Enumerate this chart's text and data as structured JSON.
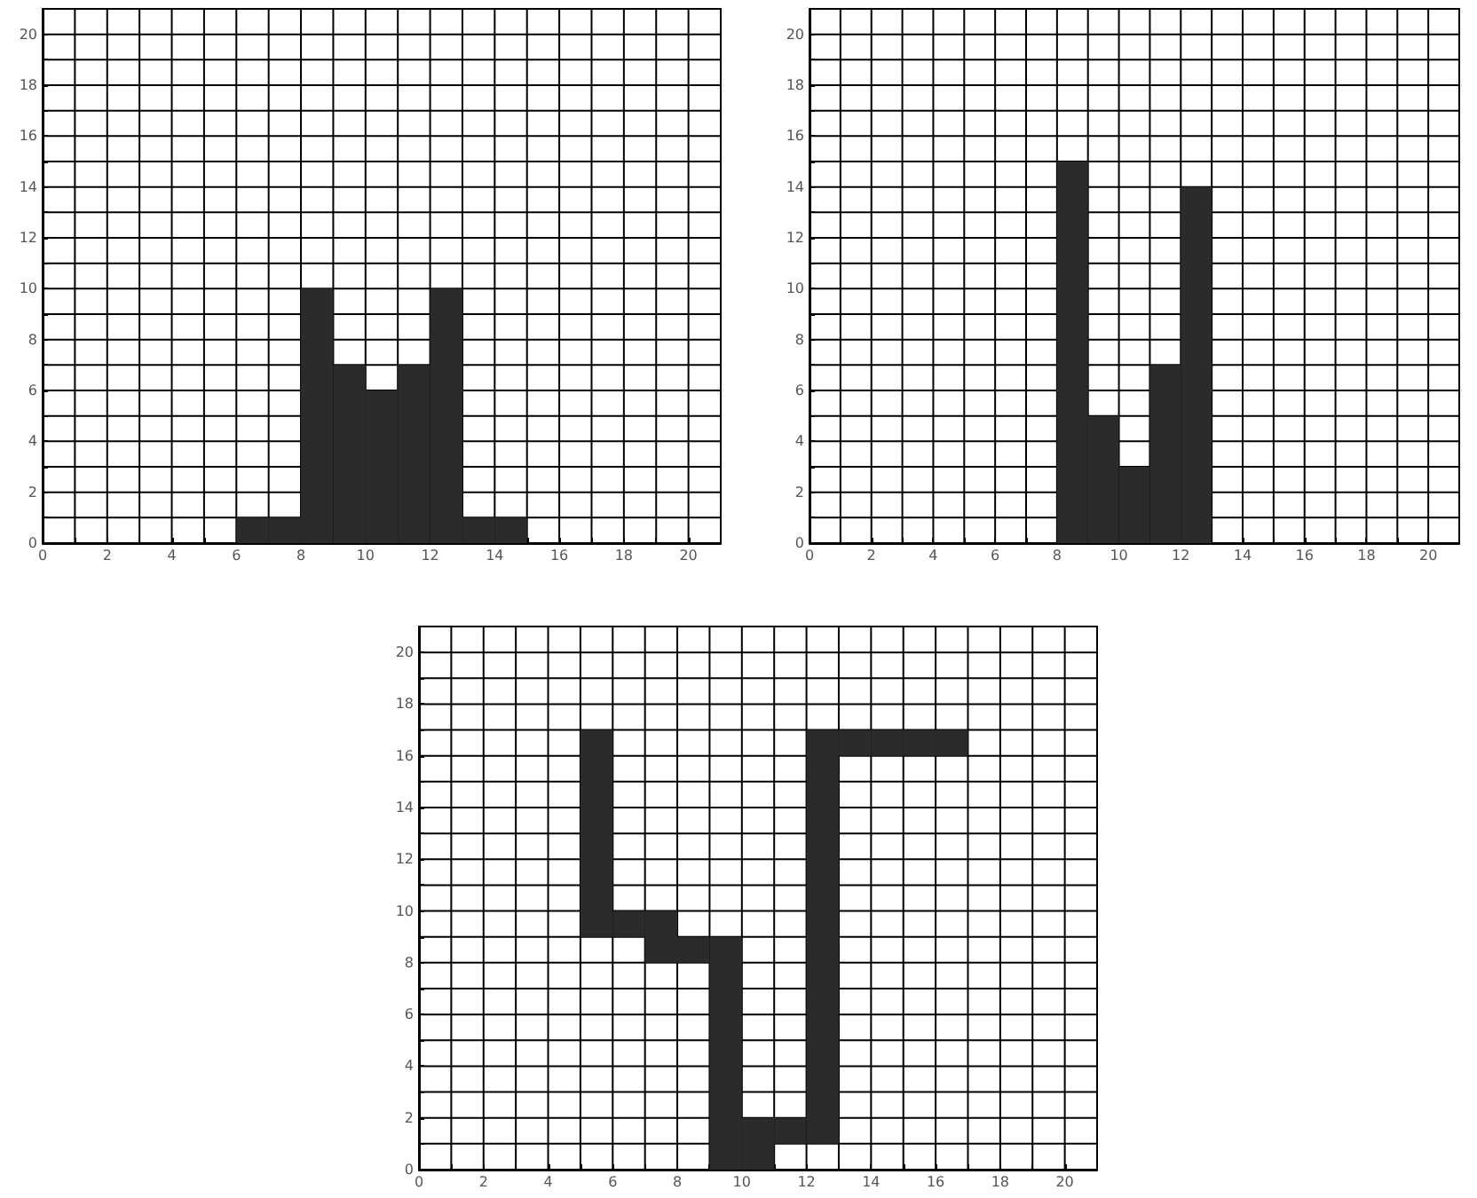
{
  "chart_data": [
    {
      "type": "histogram",
      "bins": [
        6,
        7,
        8,
        9,
        10,
        11,
        12,
        13,
        14,
        15
      ],
      "values": [
        1,
        1,
        10,
        7,
        6,
        7,
        10,
        1,
        1
      ],
      "color": "#2b2b2b",
      "xlim": [
        0,
        21
      ],
      "ylim": [
        0,
        21
      ],
      "xticks": [
        0,
        {
          "value": 1,
          "label": null
        },
        2,
        {
          "value": 3,
          "label": null
        },
        4,
        {
          "value": 5,
          "label": null
        },
        6,
        {
          "value": 7,
          "label": null
        },
        8,
        {
          "value": 9,
          "label": null
        },
        10,
        {
          "value": 11,
          "label": null
        },
        12,
        {
          "value": 13,
          "label": null
        },
        14,
        {
          "value": 15,
          "label": null
        },
        16,
        {
          "value": 17,
          "label": null
        },
        18,
        {
          "value": 19,
          "label": null
        },
        20
      ],
      "yticks": [
        0,
        {
          "value": 1,
          "label": null
        },
        2,
        {
          "value": 3,
          "label": null
        },
        4,
        {
          "value": 5,
          "label": null
        },
        6,
        {
          "value": 7,
          "label": null
        },
        8,
        {
          "value": 9,
          "label": null
        },
        10,
        {
          "value": 11,
          "label": null
        },
        12,
        {
          "value": 13,
          "label": null
        },
        14,
        {
          "value": 15,
          "label": null
        },
        16,
        {
          "value": 17,
          "label": null
        },
        18,
        {
          "value": 19,
          "label": null
        },
        20
      ],
      "grid": true
    },
    {
      "type": "histogram",
      "bins": [
        8,
        9,
        10,
        11,
        12,
        13
      ],
      "values": [
        15,
        5,
        3,
        7,
        14
      ],
      "color": "#2b2b2b",
      "xlim": [
        0,
        21
      ],
      "ylim": [
        0,
        21
      ],
      "xticks": [
        0,
        {
          "value": 1,
          "label": null
        },
        2,
        {
          "value": 3,
          "label": null
        },
        4,
        {
          "value": 5,
          "label": null
        },
        6,
        {
          "value": 7,
          "label": null
        },
        8,
        {
          "value": 9,
          "label": null
        },
        10,
        {
          "value": 11,
          "label": null
        },
        12,
        {
          "value": 13,
          "label": null
        },
        14,
        {
          "value": 15,
          "label": null
        },
        16,
        {
          "value": 17,
          "label": null
        },
        18,
        {
          "value": 19,
          "label": null
        },
        20
      ],
      "yticks": [
        0,
        {
          "value": 1,
          "label": null
        },
        2,
        {
          "value": 3,
          "label": null
        },
        4,
        {
          "value": 5,
          "label": null
        },
        6,
        {
          "value": 7,
          "label": null
        },
        8,
        {
          "value": 9,
          "label": null
        },
        10,
        {
          "value": 11,
          "label": null
        },
        12,
        {
          "value": 13,
          "label": null
        },
        14,
        {
          "value": 15,
          "label": null
        },
        16,
        {
          "value": 17,
          "label": null
        },
        18,
        {
          "value": 19,
          "label": null
        },
        20
      ],
      "grid": true
    },
    {
      "type": "bar",
      "x": [
        5.5,
        6.5,
        7.5,
        8.5,
        9.5,
        10.5,
        11.5,
        12.5,
        13.5,
        14.5,
        15.5,
        16.5
      ],
      "base": [
        9,
        9,
        8,
        8,
        0,
        0,
        1,
        1,
        16,
        16,
        16,
        16
      ],
      "values": [
        8,
        1,
        2,
        1,
        9,
        2,
        1,
        16,
        1,
        1,
        1,
        1
      ],
      "color": "#2b2b2b",
      "xlim": [
        0,
        21
      ],
      "ylim": [
        0,
        21
      ],
      "xticks": [
        0,
        {
          "value": 1,
          "label": null
        },
        2,
        {
          "value": 3,
          "label": null
        },
        4,
        {
          "value": 5,
          "label": null
        },
        6,
        {
          "value": 7,
          "label": null
        },
        8,
        {
          "value": 9,
          "label": null
        },
        10,
        {
          "value": 11,
          "label": null
        },
        12,
        {
          "value": 13,
          "label": null
        },
        14,
        {
          "value": 15,
          "label": null
        },
        16,
        {
          "value": 17,
          "label": null
        },
        18,
        {
          "value": 19,
          "label": null
        },
        20
      ],
      "yticks": [
        0,
        {
          "value": 1,
          "label": null
        },
        2,
        {
          "value": 3,
          "label": null
        },
        4,
        {
          "value": 5,
          "label": null
        },
        6,
        {
          "value": 7,
          "label": null
        },
        8,
        {
          "value": 9,
          "label": null
        },
        10,
        {
          "value": 11,
          "label": null
        },
        12,
        {
          "value": 13,
          "label": null
        },
        14,
        {
          "value": 15,
          "label": null
        },
        16,
        {
          "value": 17,
          "label": null
        },
        18,
        {
          "value": 19,
          "label": null
        },
        20
      ],
      "grid": true
    }
  ]
}
